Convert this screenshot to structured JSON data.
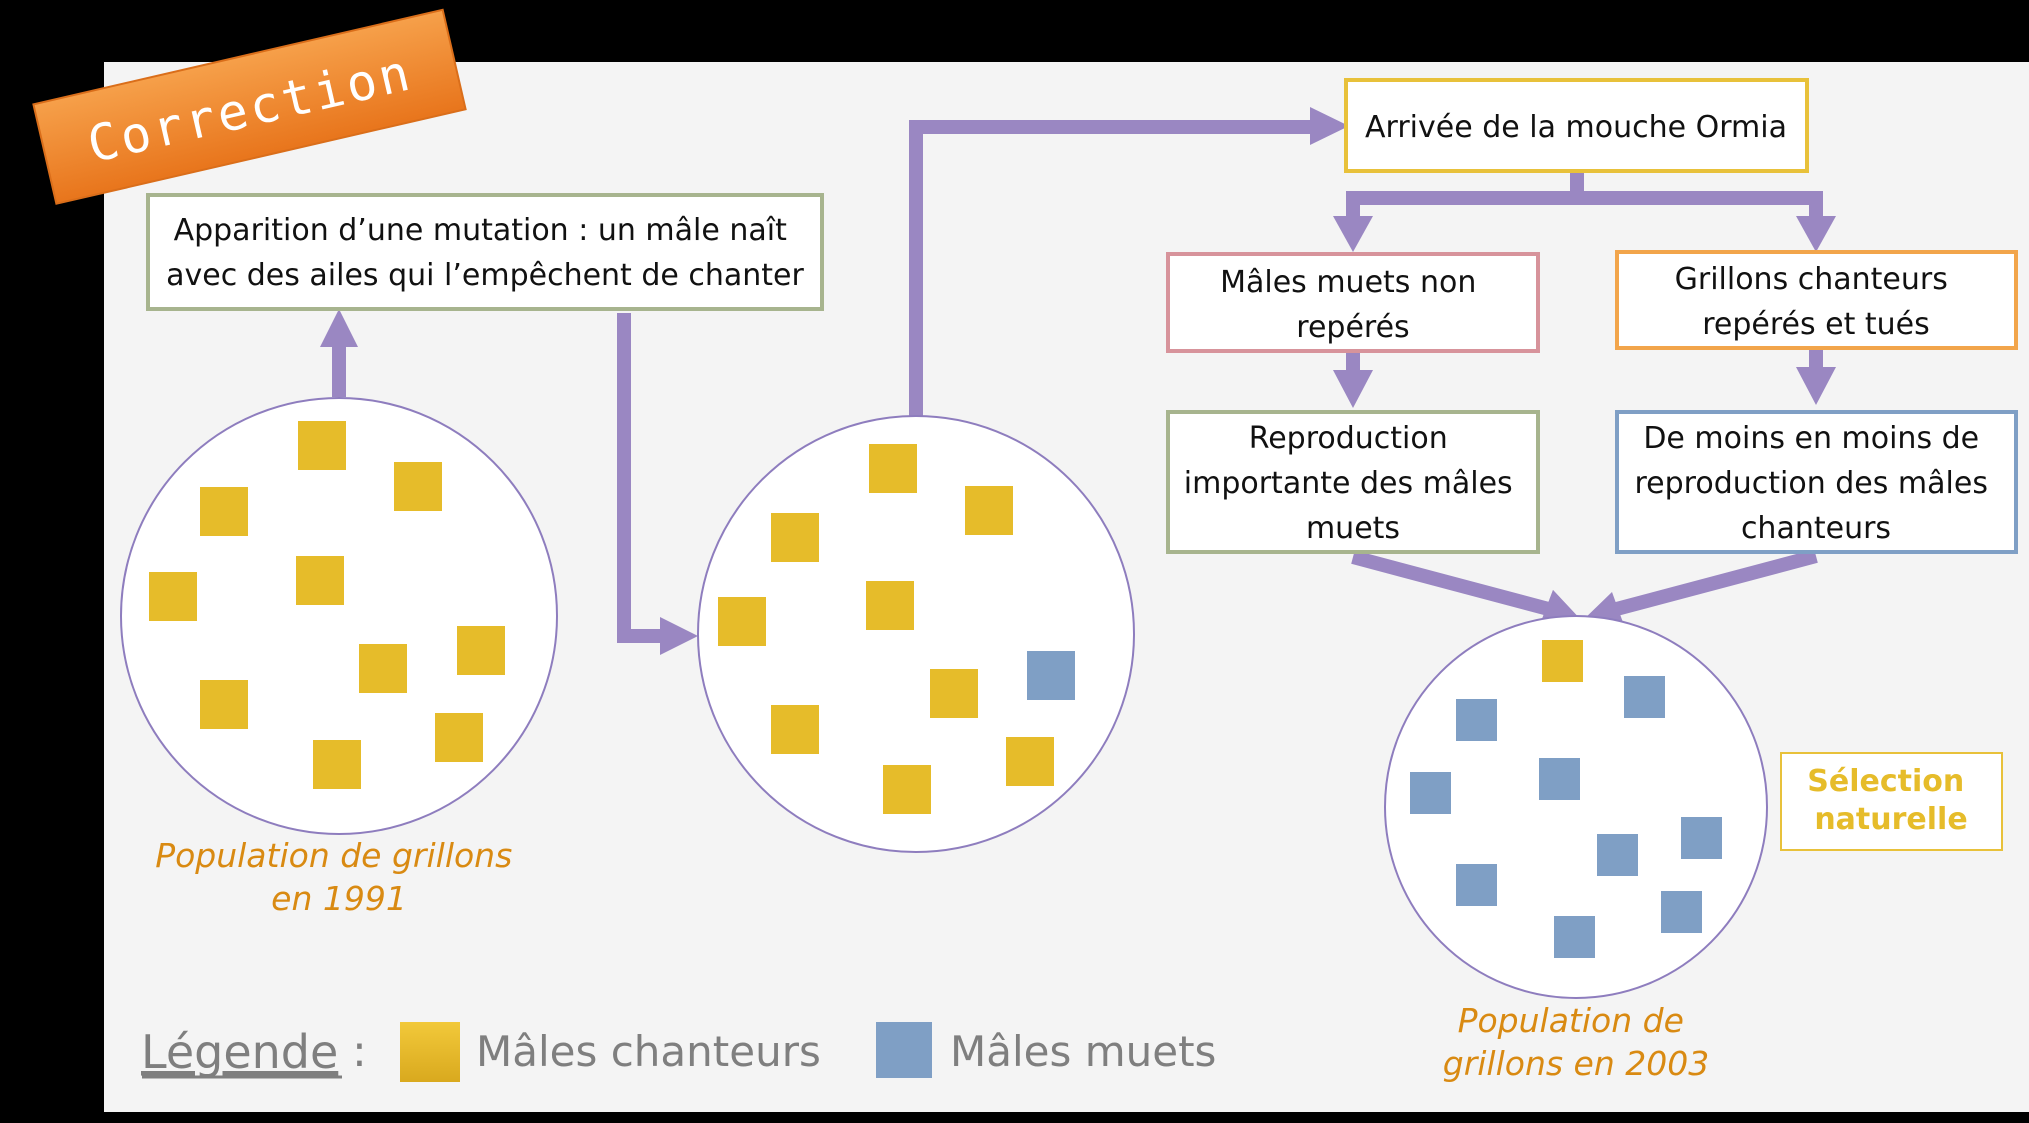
{
  "badge": {
    "text": "Correction"
  },
  "boxes": {
    "mutation": [
      "Apparition d’une mutation : un mâle naît",
      "avec des ailes qui l’empêchent de chanter"
    ],
    "ormia": [
      "Arrivée de la mouche Ormia"
    ],
    "muets_non_reperes": [
      "Mâles muets non",
      "repérés"
    ],
    "chanteurs_tues": [
      "Grillons chanteurs",
      "repérés et tués"
    ],
    "repro_muets": [
      "Reproduction",
      "importante des mâles",
      "muets"
    ],
    "repro_chanteurs": [
      "De moins en moins de",
      "reproduction des mâles",
      "chanteurs"
    ],
    "selection": [
      "Sélection",
      "naturelle"
    ]
  },
  "captions": {
    "pop1991": [
      "Population de grillons",
      "en 1991"
    ],
    "pop2003": [
      "Population de",
      "grillons en 2003"
    ]
  },
  "legend": {
    "title": "Légende",
    "colon": ":",
    "items": [
      {
        "label": "Mâles chanteurs",
        "color": "#E6BC2A"
      },
      {
        "label": "Mâles muets",
        "color": "#7F9FC5"
      }
    ]
  },
  "colors": {
    "arrow": "#9A87C2",
    "circle": "#8E7DBE",
    "caption": "#D98A12",
    "selection": "#E6BC2A",
    "badge": "#F08A2A",
    "green_border": "#A7B48E",
    "yellow_border": "#E8C13A",
    "pink_border": "#D7939B",
    "orange_border": "#F2A54B",
    "blue_border": "#7F9FC5"
  }
}
